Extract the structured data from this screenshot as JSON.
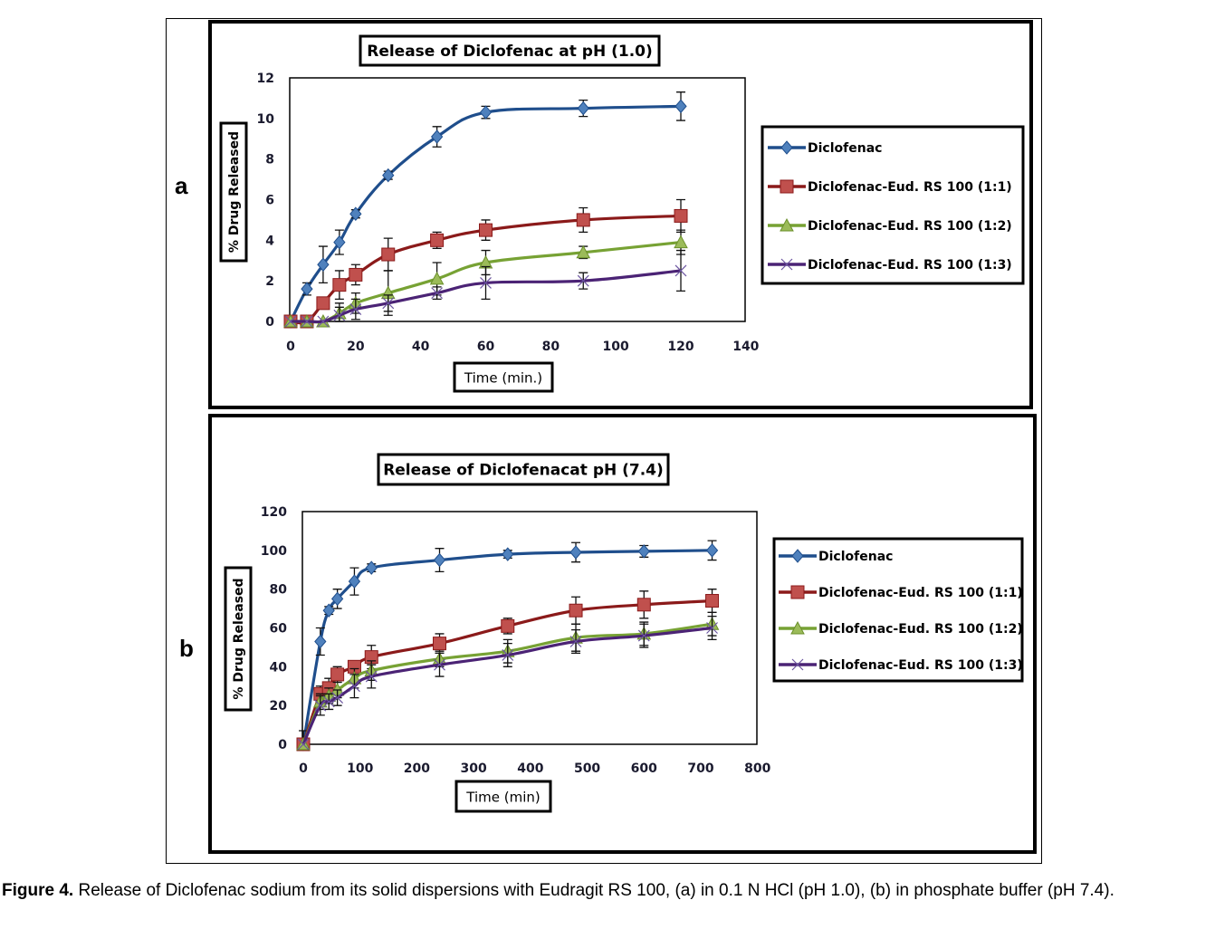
{
  "caption": {
    "label": "Figure 4.",
    "text": "Release of Diclofenac sodium from its solid dispersions with Eudragit RS 100, (a) in 0.1 N HCl (pH 1.0), (b) in phosphate buffer (pH 7.4)."
  },
  "colors": {
    "diclofenac": "#1F4E8C",
    "ratio_1_1": "#8B1A1A",
    "ratio_1_2": "#77A234",
    "ratio_1_3": "#4B2375",
    "marker_1_1": "#C0504D",
    "marker_1_2": "#9BBB59",
    "marker_diclo": "#4F81BD"
  },
  "chart_data": [
    {
      "panel": "a",
      "type": "line",
      "title": "Release of Diclofenac at pH (1.0)",
      "xlabel": "Time (min.)",
      "ylabel": "% Drug Released",
      "xlim": [
        0,
        140
      ],
      "ylim": [
        0,
        12
      ],
      "xticks": [
        0,
        20,
        40,
        60,
        80,
        100,
        120,
        140
      ],
      "yticks": [
        0,
        2,
        4,
        6,
        8,
        10,
        12
      ],
      "grid": false,
      "legend": "right",
      "series": [
        {
          "name": "Diclofenac",
          "marker": "diamond",
          "x": [
            0,
            5,
            10,
            15,
            20,
            30,
            45,
            60,
            90,
            120
          ],
          "y": [
            0,
            1.6,
            2.8,
            3.9,
            5.3,
            7.2,
            9.1,
            10.3,
            10.5,
            10.6
          ],
          "err": [
            0,
            0.3,
            0.9,
            0.6,
            0.2,
            0.2,
            0.5,
            0.3,
            0.4,
            0.7
          ]
        },
        {
          "name": "Diclofenac-Eud. RS 100  (1:1)",
          "marker": "square",
          "x": [
            0,
            5,
            10,
            15,
            20,
            30,
            45,
            60,
            90,
            120
          ],
          "y": [
            0,
            0,
            0.9,
            1.8,
            2.3,
            3.3,
            4.0,
            4.5,
            5.0,
            5.2
          ],
          "err": [
            0,
            0,
            0,
            0.7,
            0.5,
            0.8,
            0.4,
            0.5,
            0.6,
            0.8
          ]
        },
        {
          "name": "Diclofenac-Eud. RS 100  (1:2)",
          "marker": "triangle",
          "x": [
            0,
            5,
            10,
            15,
            20,
            30,
            45,
            60,
            90,
            120
          ],
          "y": [
            0,
            0,
            0,
            0.4,
            0.9,
            1.4,
            2.1,
            2.9,
            3.4,
            3.9
          ],
          "err": [
            0,
            0,
            0,
            0.5,
            0.5,
            1.1,
            0.8,
            0.6,
            0.3,
            0.6
          ]
        },
        {
          "name": "Diclofenac-Eud. RS 100  (1:3)",
          "marker": "x",
          "x": [
            0,
            5,
            10,
            15,
            20,
            30,
            45,
            60,
            90,
            120
          ],
          "y": [
            0,
            0,
            0,
            0.3,
            0.6,
            0.9,
            1.4,
            1.9,
            2.0,
            2.5
          ],
          "err": [
            0,
            0,
            0,
            0.4,
            0.5,
            0.4,
            0.3,
            0.8,
            0.4,
            1.0
          ]
        }
      ]
    },
    {
      "panel": "b",
      "type": "line",
      "title": "Release of Diclofenacat pH (7.4)",
      "xlabel": "Time (min)",
      "ylabel": "% Drug Released",
      "xlim": [
        0,
        800
      ],
      "ylim": [
        0,
        120
      ],
      "xticks": [
        0,
        100,
        200,
        300,
        400,
        500,
        600,
        700,
        800
      ],
      "yticks": [
        0,
        20,
        40,
        60,
        80,
        100,
        120
      ],
      "grid": false,
      "legend": "right",
      "series": [
        {
          "name": "Diclofenac",
          "marker": "diamond",
          "x": [
            0,
            30,
            45,
            60,
            90,
            120,
            240,
            360,
            480,
            600,
            720
          ],
          "y": [
            0,
            53,
            69,
            75,
            84,
            91,
            95,
            98,
            99,
            99.5,
            100
          ],
          "err": [
            7,
            7,
            2,
            5,
            7,
            2,
            6,
            2,
            5,
            3,
            5
          ]
        },
        {
          "name": "Diclofenac-Eud. RS 100  (1:1)",
          "marker": "square",
          "x": [
            0,
            30,
            45,
            60,
            90,
            120,
            240,
            360,
            480,
            600,
            720
          ],
          "y": [
            0,
            26,
            29,
            36,
            40,
            45,
            52,
            61,
            69,
            72,
            74
          ],
          "err": [
            0,
            4,
            5,
            4,
            3,
            6,
            5,
            4,
            7,
            7,
            6
          ]
        },
        {
          "name": "Diclofenac-Eud. RS 100  (1:2)",
          "marker": "triangle",
          "x": [
            0,
            30,
            45,
            60,
            90,
            120,
            240,
            360,
            480,
            600,
            720
          ],
          "y": [
            0,
            22,
            25,
            28,
            34,
            38,
            44,
            48,
            55,
            57,
            62
          ],
          "err": [
            0,
            4,
            4,
            4,
            5,
            5,
            4,
            6,
            7,
            6,
            6
          ]
        },
        {
          "name": "Diclofenac-Eud. RS 100  (1:3)",
          "marker": "x",
          "x": [
            0,
            30,
            45,
            60,
            90,
            120,
            240,
            360,
            480,
            600,
            720
          ],
          "y": [
            0,
            20,
            22,
            24,
            30,
            35,
            41,
            46,
            53,
            56,
            60
          ],
          "err": [
            0,
            5,
            4,
            4,
            6,
            6,
            6,
            6,
            6,
            6,
            6
          ]
        }
      ]
    }
  ]
}
